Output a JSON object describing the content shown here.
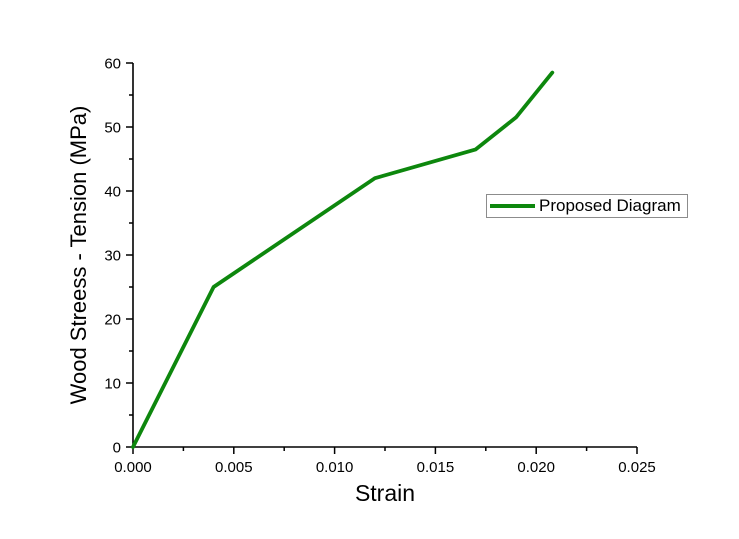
{
  "colors": {
    "background": "#ffffff",
    "axis": "#000000",
    "text": "#000000",
    "series_green": "#0d870d",
    "legend_border": "#8c8c8c"
  },
  "chart_data": {
    "type": "line",
    "title": "",
    "xlabel": "Strain",
    "ylabel": "Wood Streess - Tension (MPa)",
    "xlim": [
      0,
      0.025
    ],
    "ylim": [
      0,
      60
    ],
    "grid": false,
    "x_tick_values": [
      0,
      0.005,
      0.01,
      0.015,
      0.02,
      0.025
    ],
    "x_tick_labels": [
      "0.000",
      "0.005",
      "0.010",
      "0.015",
      "0.020",
      "0.025"
    ],
    "x_minor_tick_values": [
      0.0025,
      0.0075,
      0.0125,
      0.0175,
      0.0225
    ],
    "y_tick_values": [
      0,
      10,
      20,
      30,
      40,
      50,
      60
    ],
    "y_tick_labels": [
      "0",
      "10",
      "20",
      "30",
      "40",
      "50",
      "60"
    ],
    "y_minor_tick_values": [
      5,
      15,
      25,
      35,
      45,
      55
    ],
    "legend": {
      "position": "middle-right",
      "entries": [
        {
          "label": "Proposed Diagram",
          "color": "#0d870d"
        }
      ]
    },
    "series": [
      {
        "name": "Proposed Diagram",
        "color": "#0d870d",
        "line_width": 3.8,
        "points": [
          [
            0.0,
            0.0
          ],
          [
            0.004,
            25.0
          ],
          [
            0.012,
            42.0
          ],
          [
            0.017,
            46.5
          ],
          [
            0.019,
            51.5
          ],
          [
            0.0208,
            58.5
          ]
        ]
      }
    ]
  }
}
